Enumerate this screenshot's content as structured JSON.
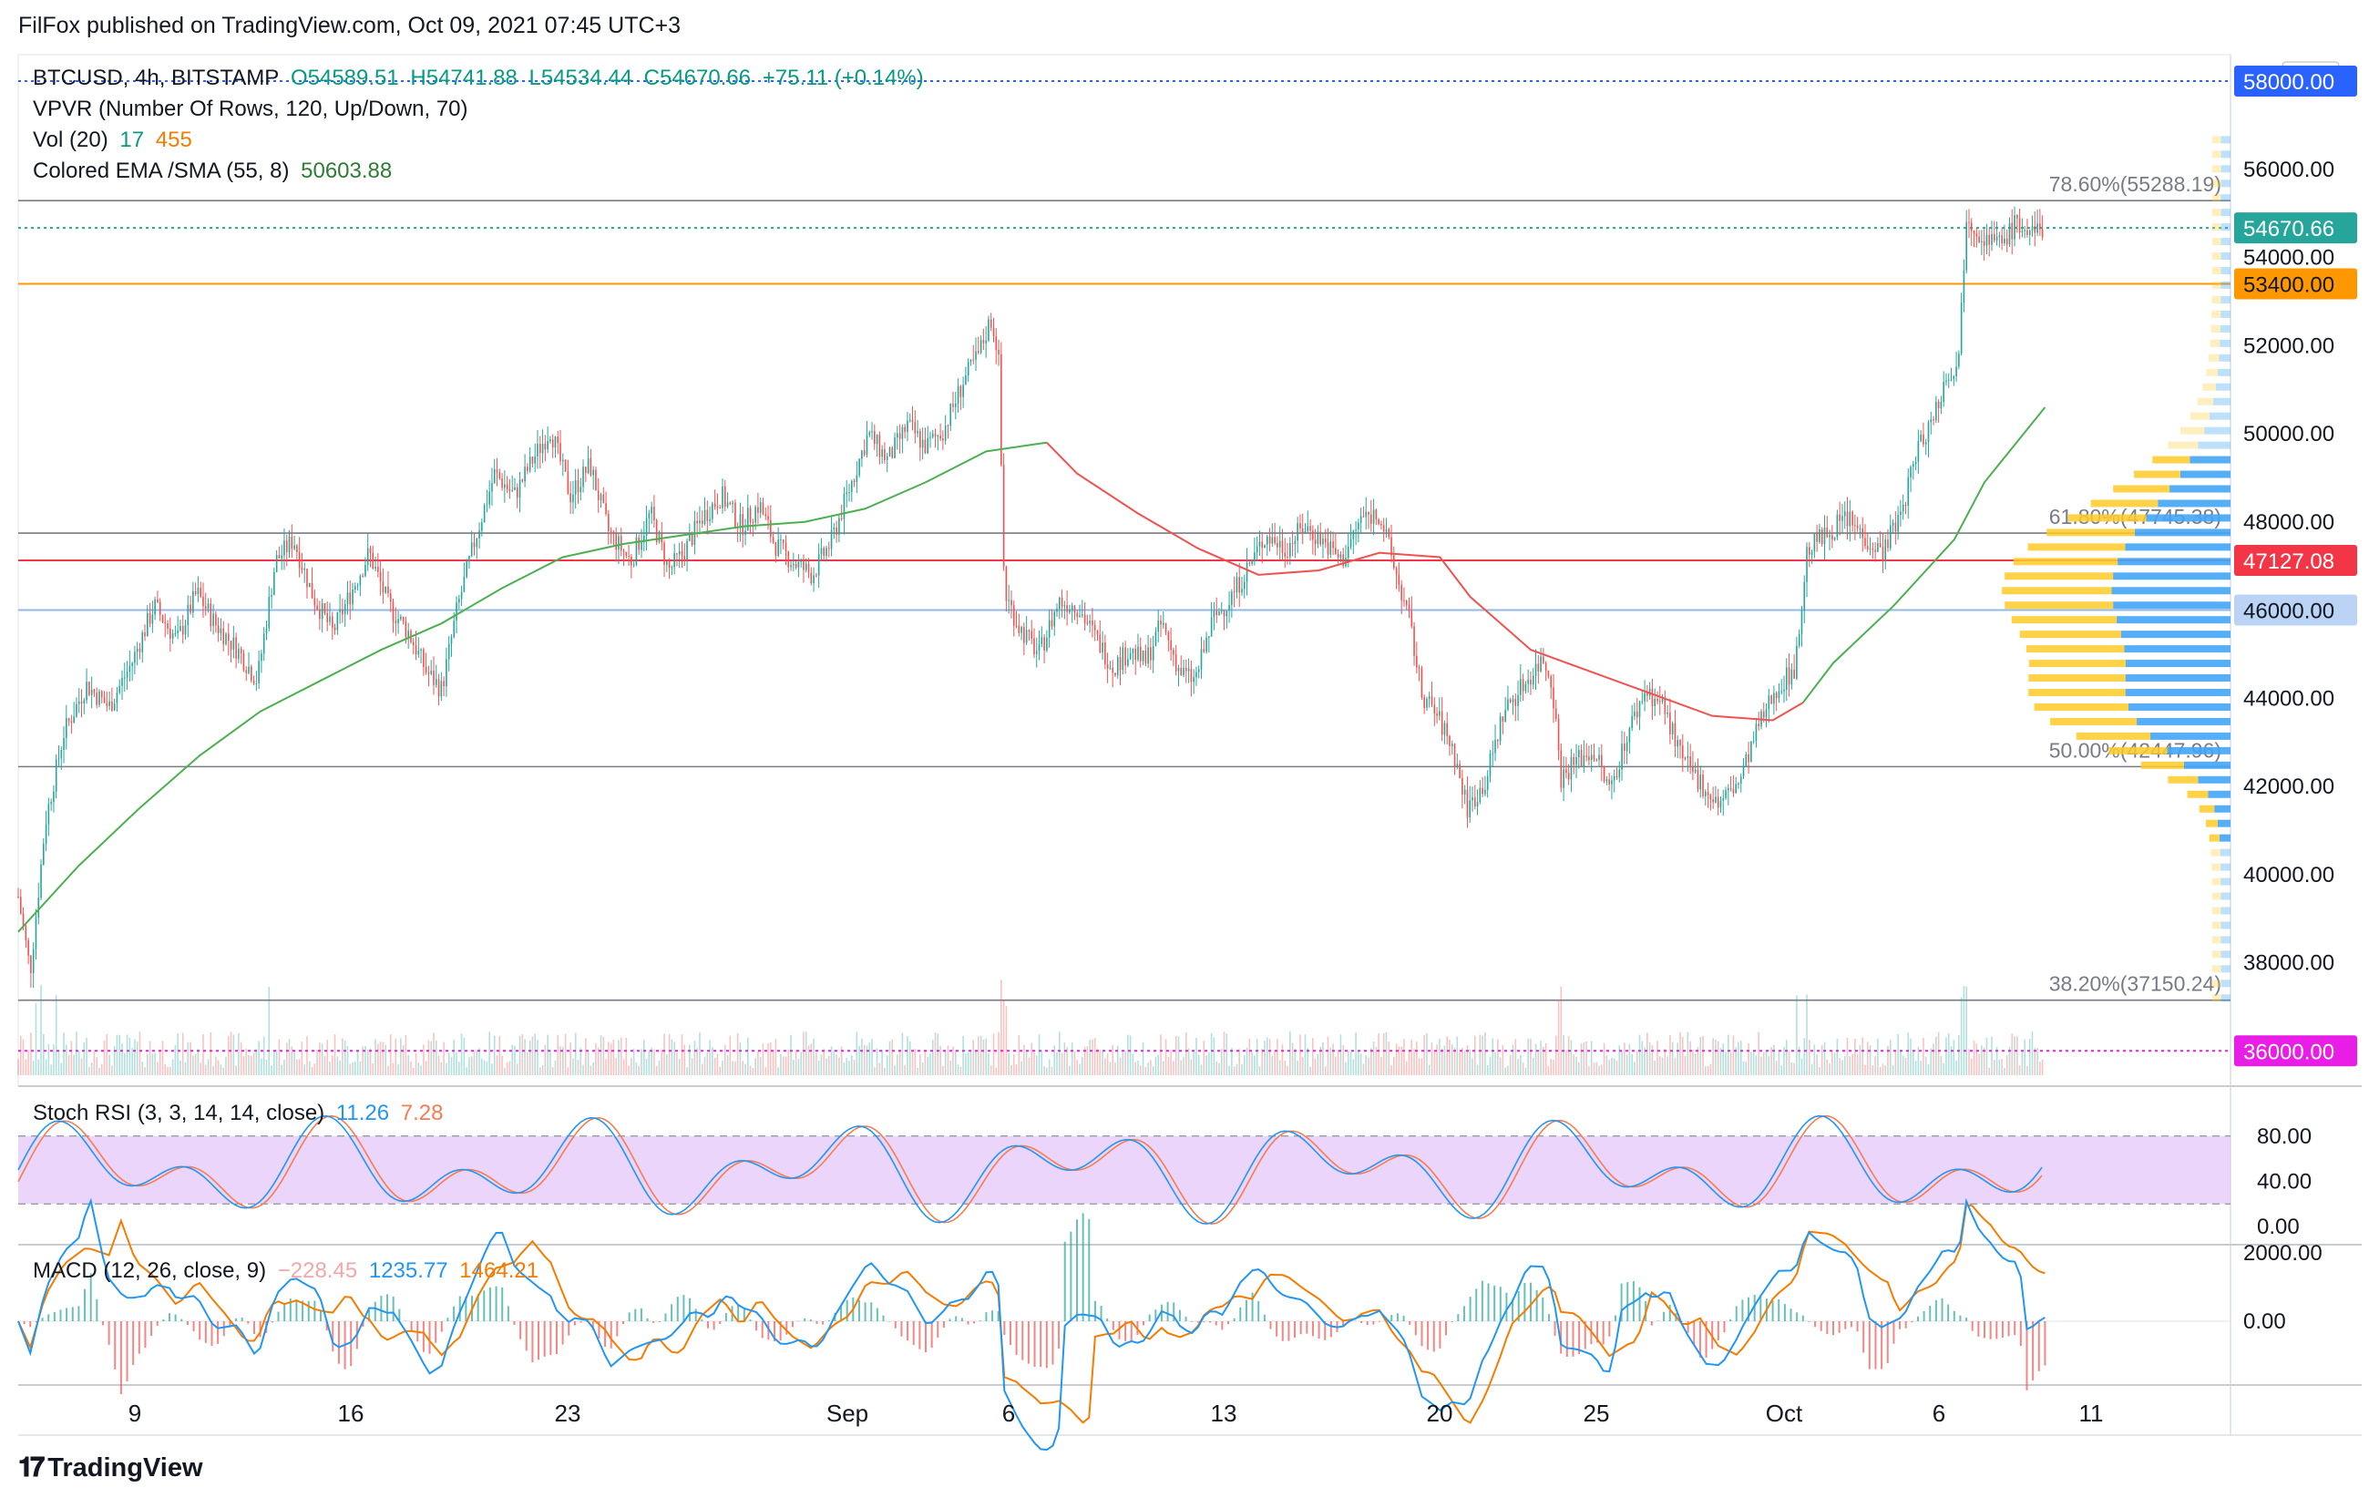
{
  "publisher": "FilFox published on TradingView.com, Oct 09, 2021 07:45 UTC+3",
  "brand": "TradingView",
  "legend": {
    "symbol": "BTCUSD, 4h, BITSTAMP",
    "open": "O54589.51",
    "high": "H54741.88",
    "low": "L54534.44",
    "close": "C54670.66",
    "change": "+75.11 (+0.14%)",
    "vpvr": "VPVR (Number Of Rows, 120, Up/Down, 70)",
    "vol_label": "Vol (20)",
    "vol_a": "17",
    "vol_b": "455",
    "ema_label": "Colored EMA /SMA (55, 8)",
    "ema_value": "50603.88",
    "stoch_label": "Stoch RSI (3, 3, 14, 14, close)",
    "stoch_k": "11.26",
    "stoch_d": "7.28",
    "macd_label": "MACD (12, 26, close, 9)",
    "macd_hist": "−228.45",
    "macd_line": "1235.77",
    "macd_signal": "1464.21"
  },
  "colors": {
    "up": "#26a69a",
    "down": "#ef5350",
    "ema": "#4caf50",
    "ema_red": "#ef5350",
    "stoch_k": "#2196f3",
    "stoch_d": "#f57c53",
    "vpvr_up": "#42a5f5",
    "vpvr_down": "#ffca28",
    "magenta": "#e91ee6"
  },
  "chart_data": {
    "type": "candlestick",
    "price_axis": {
      "min": 35200,
      "max": 58600,
      "ticks": [
        "58000.00",
        "56000.00",
        "54000.00",
        "52000.00",
        "50000.00",
        "48000.00",
        "46000.00",
        "44000.00",
        "42000.00",
        "40000.00",
        "38000.00",
        "36000.00"
      ],
      "unit": "USD"
    },
    "x_ticks": [
      "9",
      "16",
      "23",
      "Sep",
      "6",
      "13",
      "20",
      "25",
      "Oct",
      "6",
      "11"
    ],
    "fib_levels": [
      {
        "label": "78.60%(55288.19)",
        "value": 55288.19
      },
      {
        "label": "61.80%(47745.38)",
        "value": 47745.38
      },
      {
        "label": "50.00%(42447.96)",
        "value": 42447.96
      },
      {
        "label": "38.20%(37150.24)",
        "value": 37150.24
      }
    ],
    "price_badges": [
      {
        "label": "58000.00",
        "value": 58000,
        "color": "#2962ff"
      },
      {
        "label": "54670.66",
        "value": 54670.66,
        "color": "#26a69a"
      },
      {
        "label": "53400.00",
        "value": 53400,
        "color": "#ff9800"
      },
      {
        "label": "47127.08",
        "value": 47127.08,
        "color": "#f23645"
      },
      {
        "label": "46000.00",
        "value": 46000,
        "color": "#bbd4f5"
      },
      {
        "label": "36000.00",
        "value": 36000,
        "color": "#e91ee6"
      }
    ],
    "horizontal_lines": [
      {
        "value": 58000,
        "color": "#2962ff",
        "style": "dotted"
      },
      {
        "value": 54670.66,
        "color": "#26a69a",
        "style": "dotted"
      },
      {
        "value": 53400,
        "color": "#ff9800",
        "style": "solid"
      },
      {
        "value": 47127.08,
        "color": "#f23645",
        "style": "solid"
      },
      {
        "value": 46000,
        "color": "#90b8e8",
        "style": "solid"
      },
      {
        "value": 36000,
        "color": "#e91ee6",
        "style": "dotted"
      }
    ],
    "close_path": [
      [
        0,
        39500
      ],
      [
        8,
        37800
      ],
      [
        18,
        41200
      ],
      [
        30,
        43200
      ],
      [
        45,
        44300
      ],
      [
        60,
        43800
      ],
      [
        75,
        44800
      ],
      [
        90,
        46100
      ],
      [
        105,
        45300
      ],
      [
        118,
        46400
      ],
      [
        130,
        45700
      ],
      [
        145,
        45100
      ],
      [
        158,
        44400
      ],
      [
        170,
        47100
      ],
      [
        182,
        47600
      ],
      [
        195,
        46300
      ],
      [
        208,
        45500
      ],
      [
        220,
        46400
      ],
      [
        232,
        47300
      ],
      [
        245,
        46100
      ],
      [
        258,
        45500
      ],
      [
        270,
        44600
      ],
      [
        280,
        44200
      ],
      [
        290,
        46000
      ],
      [
        302,
        47600
      ],
      [
        315,
        49100
      ],
      [
        328,
        48600
      ],
      [
        340,
        49400
      ],
      [
        352,
        50100
      ],
      [
        365,
        48600
      ],
      [
        378,
        49300
      ],
      [
        390,
        47800
      ],
      [
        405,
        47100
      ],
      [
        418,
        48200
      ],
      [
        430,
        46900
      ],
      [
        440,
        47300
      ],
      [
        452,
        48100
      ],
      [
        465,
        48600
      ],
      [
        478,
        47900
      ],
      [
        490,
        48400
      ],
      [
        500,
        47500
      ],
      [
        512,
        47100
      ],
      [
        525,
        46800
      ],
      [
        538,
        47600
      ],
      [
        550,
        48800
      ],
      [
        562,
        50000
      ],
      [
        575,
        49400
      ],
      [
        588,
        50200
      ],
      [
        600,
        49700
      ],
      [
        612,
        50100
      ],
      [
        625,
        51200
      ],
      [
        635,
        51800
      ],
      [
        643,
        52600
      ],
      [
        648,
        51900
      ],
      [
        652,
        46400
      ],
      [
        662,
        45600
      ],
      [
        675,
        45000
      ],
      [
        688,
        46200
      ],
      [
        700,
        46100
      ],
      [
        712,
        45400
      ],
      [
        724,
        44700
      ],
      [
        735,
        45100
      ],
      [
        745,
        44800
      ],
      [
        756,
        45700
      ],
      [
        768,
        44600
      ],
      [
        778,
        44400
      ],
      [
        790,
        45800
      ],
      [
        800,
        46200
      ],
      [
        812,
        46900
      ],
      [
        825,
        47700
      ],
      [
        838,
        47400
      ],
      [
        850,
        47900
      ],
      [
        862,
        47600
      ],
      [
        875,
        47100
      ],
      [
        888,
        48100
      ],
      [
        900,
        48200
      ],
      [
        912,
        46700
      ],
      [
        920,
        45700
      ],
      [
        928,
        44100
      ],
      [
        938,
        43600
      ],
      [
        948,
        42900
      ],
      [
        958,
        41500
      ],
      [
        970,
        42100
      ],
      [
        982,
        43700
      ],
      [
        995,
        44300
      ],
      [
        1008,
        44900
      ],
      [
        1014,
        44400
      ],
      [
        1020,
        42200
      ],
      [
        1030,
        42600
      ],
      [
        1042,
        42800
      ],
      [
        1052,
        41900
      ],
      [
        1064,
        43200
      ],
      [
        1076,
        44200
      ],
      [
        1088,
        43800
      ],
      [
        1100,
        42600
      ],
      [
        1112,
        42100
      ],
      [
        1124,
        41600
      ],
      [
        1138,
        42100
      ],
      [
        1150,
        43300
      ],
      [
        1162,
        44200
      ],
      [
        1175,
        44700
      ],
      [
        1183,
        47400
      ],
      [
        1195,
        47700
      ],
      [
        1208,
        48100
      ],
      [
        1220,
        47700
      ],
      [
        1232,
        47300
      ],
      [
        1245,
        48200
      ],
      [
        1255,
        49600
      ],
      [
        1265,
        50300
      ],
      [
        1275,
        51300
      ],
      [
        1283,
        51700
      ],
      [
        1288,
        55000
      ],
      [
        1298,
        54500
      ],
      [
        1310,
        54300
      ],
      [
        1322,
        54800
      ],
      [
        1330,
        54500
      ],
      [
        1340,
        54670
      ]
    ],
    "ema_path": [
      [
        0,
        38700
      ],
      [
        40,
        40200
      ],
      [
        80,
        41500
      ],
      [
        120,
        42700
      ],
      [
        160,
        43700
      ],
      [
        200,
        44400
      ],
      [
        240,
        45100
      ],
      [
        280,
        45700
      ],
      [
        320,
        46500
      ],
      [
        360,
        47200
      ],
      [
        400,
        47500
      ],
      [
        440,
        47700
      ],
      [
        480,
        47900
      ],
      [
        520,
        48000
      ],
      [
        560,
        48300
      ],
      [
        600,
        48900
      ],
      [
        640,
        49600
      ],
      [
        680,
        49800
      ],
      [
        700,
        49100
      ],
      [
        740,
        48200
      ],
      [
        780,
        47400
      ],
      [
        820,
        46800
      ],
      [
        860,
        46900
      ],
      [
        900,
        47300
      ],
      [
        940,
        47200
      ],
      [
        960,
        46300
      ],
      [
        1000,
        45100
      ],
      [
        1040,
        44600
      ],
      [
        1080,
        44100
      ],
      [
        1120,
        43600
      ],
      [
        1160,
        43500
      ],
      [
        1180,
        43900
      ],
      [
        1200,
        44800
      ],
      [
        1240,
        46100
      ],
      [
        1280,
        47600
      ],
      [
        1300,
        48900
      ],
      [
        1340,
        50600
      ]
    ],
    "stoch_rsi": {
      "ticks": [
        "80.00",
        "40.00",
        "0.00"
      ],
      "upper": 80,
      "lower": 20,
      "k": 11.26,
      "d": 7.28
    },
    "macd": {
      "ticks": [
        "2000.00",
        "0.00"
      ],
      "histogram": -228.45,
      "macd": 1235.77,
      "signal": 1464.21
    }
  }
}
